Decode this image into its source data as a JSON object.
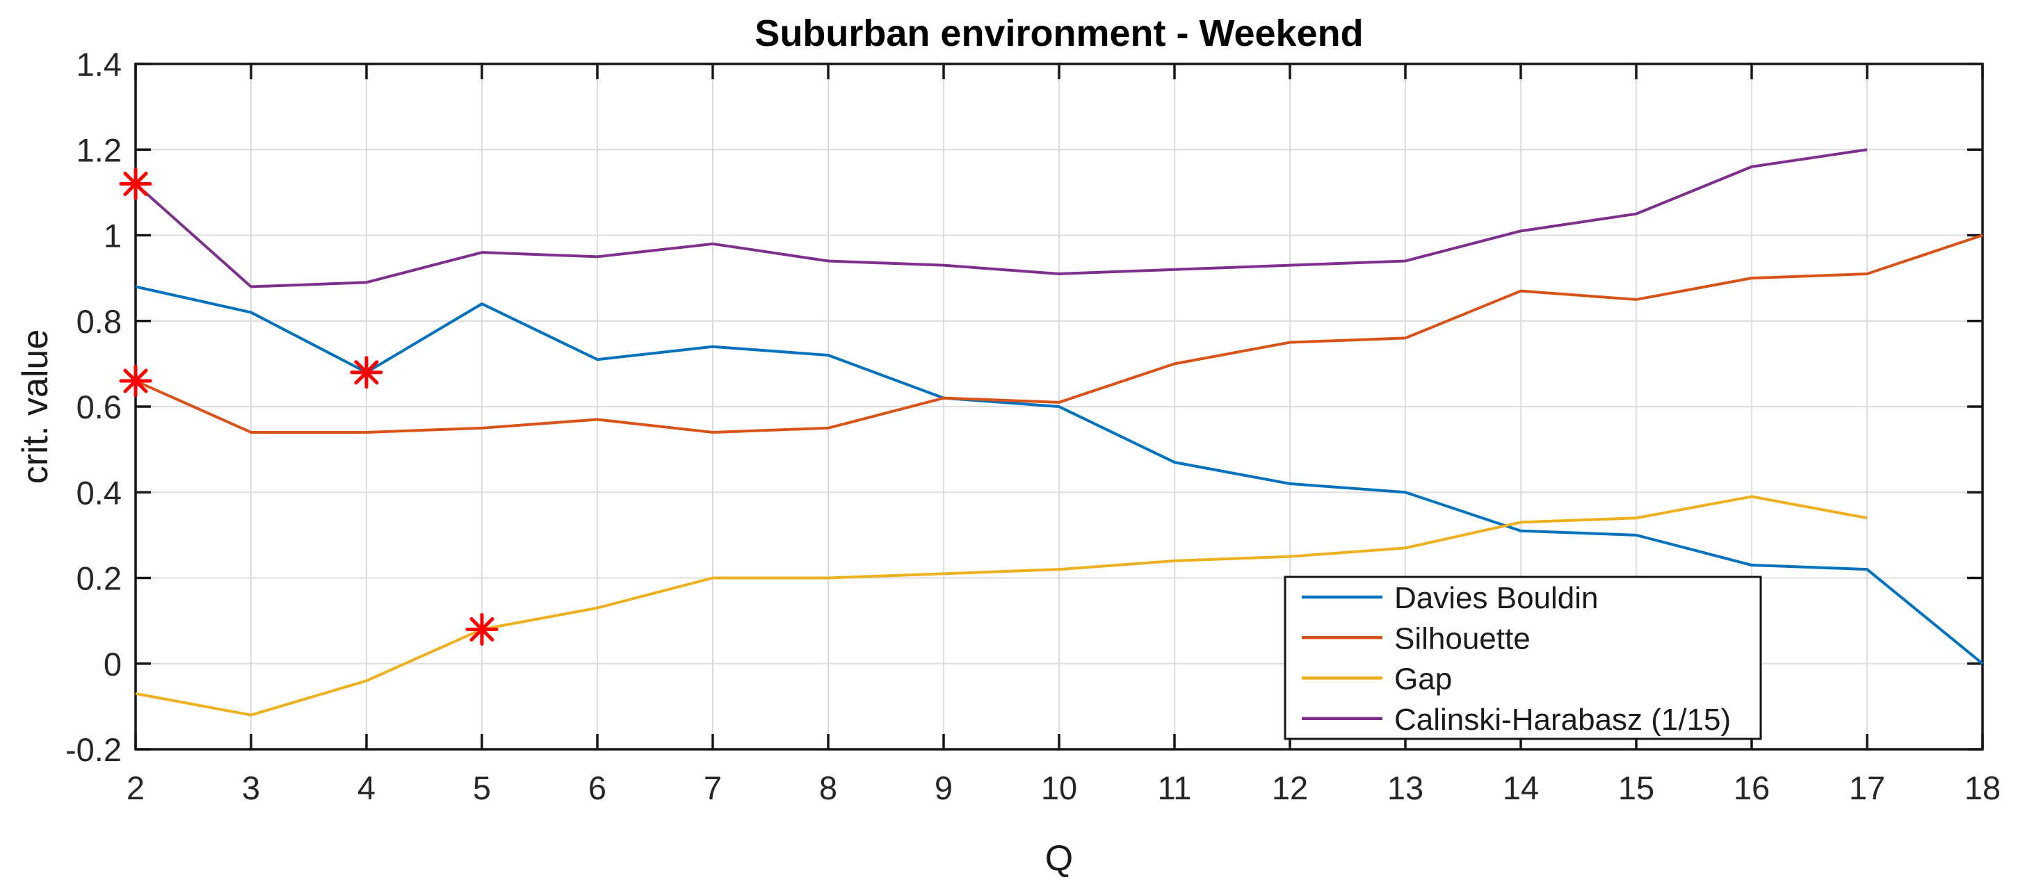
{
  "figure": {
    "title": "Suburban environment - Weekend",
    "xlabel": "Q",
    "ylabel": "crit. value"
  },
  "chart_data": {
    "type": "line",
    "title": "Suburban environment - Weekend",
    "xlabel": "Q",
    "ylabel": "crit. value",
    "x": [
      2,
      3,
      4,
      5,
      6,
      7,
      8,
      9,
      10,
      11,
      12,
      13,
      14,
      15,
      16,
      17,
      18
    ],
    "xlim": [
      2,
      18
    ],
    "ylim": [
      -0.2,
      1.4
    ],
    "xtick_labels": [
      "2",
      "3",
      "4",
      "5",
      "6",
      "7",
      "8",
      "9",
      "10",
      "11",
      "12",
      "13",
      "14",
      "15",
      "16",
      "17",
      "18"
    ],
    "yticks": [
      -0.2,
      0,
      0.2,
      0.4,
      0.6,
      0.8,
      1,
      1.2,
      1.4
    ],
    "ytick_labels": [
      "-0.2",
      "0",
      "0.2",
      "0.4",
      "0.6",
      "0.8",
      "1",
      "1.2",
      "1.4"
    ],
    "grid": true,
    "legend_position": "inside lower right",
    "series": [
      {
        "name": "Davies Bouldin",
        "color": "#0072BD",
        "values": [
          0.88,
          0.82,
          0.68,
          0.84,
          0.71,
          0.74,
          0.72,
          0.62,
          0.6,
          0.47,
          0.42,
          0.4,
          0.31,
          0.3,
          0.23,
          0.22,
          0.0
        ]
      },
      {
        "name": "Silhouette",
        "color": "#D95319",
        "values": [
          0.66,
          0.54,
          0.54,
          0.55,
          0.57,
          0.54,
          0.55,
          0.62,
          0.61,
          0.7,
          0.75,
          0.76,
          0.87,
          0.85,
          0.9,
          0.91,
          1.0
        ]
      },
      {
        "name": "Gap",
        "color": "#EDB120",
        "values": [
          -0.07,
          -0.12,
          -0.04,
          0.08,
          0.13,
          0.2,
          0.2,
          0.21,
          0.22,
          0.24,
          0.25,
          0.27,
          0.33,
          0.34,
          0.39,
          0.34,
          null
        ]
      },
      {
        "name": "Calinski-Harabasz (1/15)",
        "color": "#7E2F8E",
        "values": [
          1.12,
          0.88,
          0.89,
          0.96,
          0.95,
          0.98,
          0.94,
          0.93,
          0.91,
          0.92,
          0.93,
          0.94,
          1.01,
          1.05,
          1.16,
          1.2,
          null
        ]
      }
    ],
    "best_markers": {
      "symbol": "asterisk",
      "color": "#FF0000",
      "points": [
        {
          "series": "Calinski-Harabasz (1/15)",
          "x": 2,
          "y": 1.12
        },
        {
          "series": "Silhouette",
          "x": 2,
          "y": 0.66
        },
        {
          "series": "Davies Bouldin",
          "x": 4,
          "y": 0.68
        },
        {
          "series": "Gap",
          "x": 5,
          "y": 0.08
        }
      ]
    },
    "colors": {
      "axis": "#151515",
      "grid": "#DBDBDB",
      "background": "#FFFFFF"
    }
  }
}
